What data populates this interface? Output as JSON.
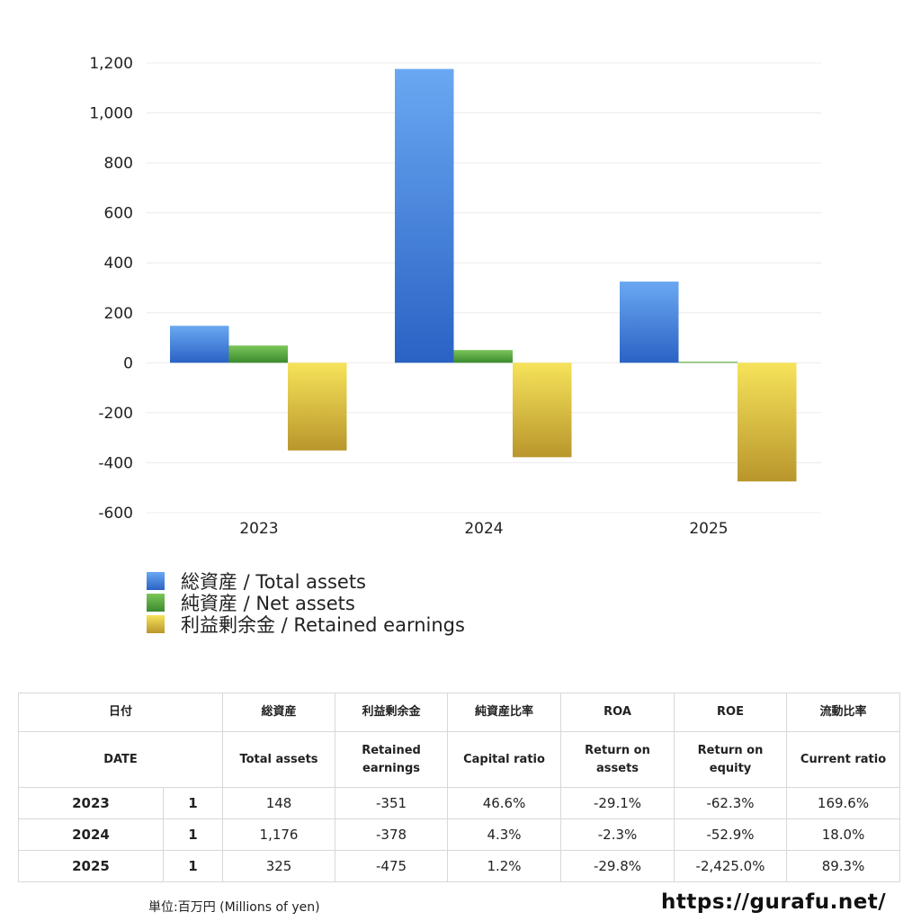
{
  "chart_data": {
    "type": "bar",
    "categories": [
      "2023",
      "2024",
      "2025"
    ],
    "series": [
      {
        "name": "総資産 / Total assets",
        "values": [
          148,
          1176,
          325
        ]
      },
      {
        "name": "純資産 / Net assets",
        "values": [
          69,
          51,
          4
        ]
      },
      {
        "name": "利益剰余金 / Retained earnings",
        "values": [
          -351,
          -378,
          -475
        ]
      }
    ],
    "ylim": [
      -600,
      1200
    ],
    "yticks": [
      1200,
      1000,
      800,
      600,
      400,
      200,
      0,
      -200,
      -400,
      -600
    ],
    "ytick_labels": [
      "1,200",
      "1,000",
      "800",
      "600",
      "400",
      "200",
      "0",
      "-200",
      "-400",
      "-600"
    ],
    "grid": true,
    "legend_position": "bottom-left",
    "title": "",
    "xlabel": "",
    "ylabel": ""
  },
  "colors": {
    "total_assets_top": "#6aa8f2",
    "total_assets_bottom": "#2a62c4",
    "net_assets_top": "#7cc65a",
    "net_assets_bottom": "#3a8a2e",
    "retained_top": "#f6e35a",
    "retained_bottom": "#b9962c",
    "negative_text": "#d63a1a"
  },
  "legend": [
    {
      "label": "総資産 / Total assets"
    },
    {
      "label": "純資産 / Net assets"
    },
    {
      "label": "利益剰余金 / Retained earnings"
    }
  ],
  "table": {
    "headers_jp": [
      "日付",
      "総資産",
      "利益剰余金",
      "純資産比率",
      "ROA",
      "ROE",
      "流動比率"
    ],
    "headers_en": [
      "DATE",
      "Total assets",
      "Retained earnings",
      "Capital ratio",
      "Return on assets",
      "Return on equity",
      "Current ratio"
    ],
    "rows": [
      {
        "date": "2023",
        "month": "1",
        "total_assets": "148",
        "retained_earnings": "-351",
        "capital_ratio": "46.6%",
        "roa": "-29.1%",
        "roe": "-62.3%",
        "current_ratio": "169.6%"
      },
      {
        "date": "2024",
        "month": "1",
        "total_assets": "1,176",
        "retained_earnings": "-378",
        "capital_ratio": "4.3%",
        "roa": "-2.3%",
        "roe": "-52.9%",
        "current_ratio": "18.0%"
      },
      {
        "date": "2025",
        "month": "1",
        "total_assets": "325",
        "retained_earnings": "-475",
        "capital_ratio": "1.2%",
        "roa": "-29.8%",
        "roe": "-2,425.0%",
        "current_ratio": "89.3%"
      }
    ]
  },
  "footer": {
    "unit_note": "単位:百万円 (Millions of yen)",
    "site_url": "https://gurafu.net/"
  }
}
